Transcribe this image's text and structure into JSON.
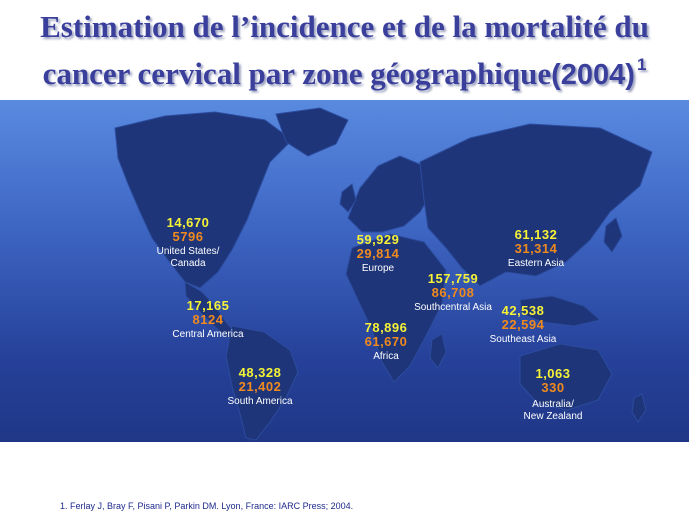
{
  "title": {
    "line1": "Estimation de l’incidence et de la mortalité du",
    "line2": "cancer cervical par zone géographique",
    "year": "(2004)",
    "sup": "1"
  },
  "regions": [
    {
      "incidence": "14,670",
      "mortality": "5796",
      "label": "United States/",
      "label2": "Canada"
    },
    {
      "incidence": "17,165",
      "mortality": "8124",
      "label": "Central America"
    },
    {
      "incidence": "48,328",
      "mortality": "21,402",
      "label": "South America"
    },
    {
      "incidence": "59,929",
      "mortality": "29,814",
      "label": "Europe"
    },
    {
      "incidence": "78,896",
      "mortality": "61,670",
      "label": "Africa"
    },
    {
      "incidence": "157,759",
      "mortality": "86,708",
      "label": "Southcentral Asia"
    },
    {
      "incidence": "61,132",
      "mortality": "31,314",
      "label": "Eastern Asia"
    },
    {
      "incidence": "42,538",
      "mortality": "22,594",
      "label": "Southeast Asia"
    },
    {
      "incidence": "1,063",
      "mortality": "330",
      "label": "Australia/",
      "label2": "New Zealand"
    }
  ],
  "colors": {
    "incidence": "#f6f236",
    "mortality": "#f08a1e",
    "title": "#3a3f9c",
    "land": "#1e3579",
    "ocean": "#3f68c5"
  },
  "footnote": "1. Ferlay J, Bray F, Pisani P, Parkin DM. Lyon, France: IARC Press; 2004."
}
